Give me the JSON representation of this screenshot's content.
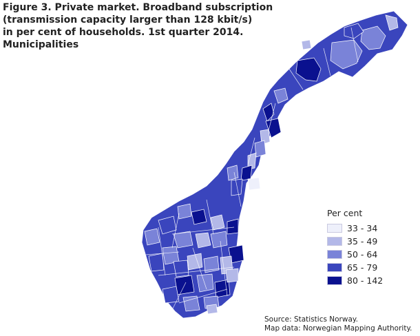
{
  "title": {
    "lines": [
      "Figure 3. Private market. Broadband subscription",
      "(transmission capacity larger than 128 kbit/s)",
      "in per cent of households. 1st quarter 2014.",
      "Municipalities"
    ]
  },
  "legend": {
    "title": "Per cent",
    "items": [
      {
        "label": "33 - 34",
        "color": "#eef0fb"
      },
      {
        "label": "35 - 49",
        "color": "#b3b8e8"
      },
      {
        "label": "50 - 64",
        "color": "#7a83d8"
      },
      {
        "label": "65 - 79",
        "color": "#3a45bd"
      },
      {
        "label": "80 - 142",
        "color": "#0a118f"
      }
    ]
  },
  "source": {
    "line1": "Source: Statistics Norway.",
    "line2": "Map data: Norwegian Mapping Authority."
  },
  "map": {
    "base_color": "#3a45bd",
    "border_color": "#ffffff"
  }
}
